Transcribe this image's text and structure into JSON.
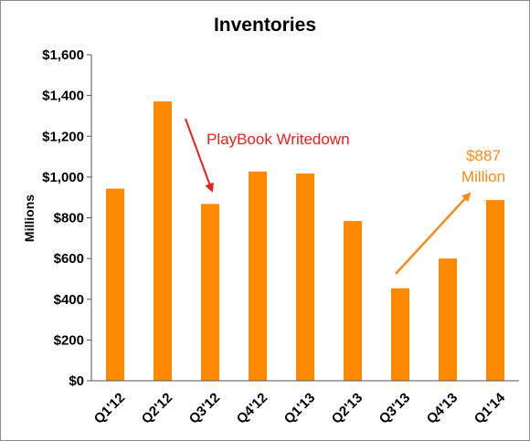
{
  "chart_data": {
    "type": "bar",
    "title": "Inventories",
    "xlabel": "",
    "ylabel": "Millions",
    "categories": [
      "Q1'12",
      "Q2'12",
      "Q3'12",
      "Q4'12",
      "Q1'13",
      "Q2'13",
      "Q3'13",
      "Q4'13",
      "Q1'14"
    ],
    "values": [
      943,
      1371,
      868,
      1027,
      1017,
      784,
      454,
      600,
      887
    ],
    "ylim": [
      0,
      1600
    ],
    "yticks": [
      0,
      200,
      400,
      600,
      800,
      1000,
      1200,
      1400,
      1600
    ],
    "ytick_labels": [
      "$0",
      "$200",
      "$400",
      "$600",
      "$800",
      "$1,000",
      "$1,200",
      "$1,400",
      "$1,600"
    ],
    "bar_color": "#ff8a00",
    "grid": false,
    "legend": "none",
    "annotations": [
      {
        "text": "PlayBook Writedown",
        "color": "#e8221b"
      },
      {
        "text_lines": [
          "$887",
          "Million"
        ],
        "color": "#f28c1c"
      }
    ]
  }
}
